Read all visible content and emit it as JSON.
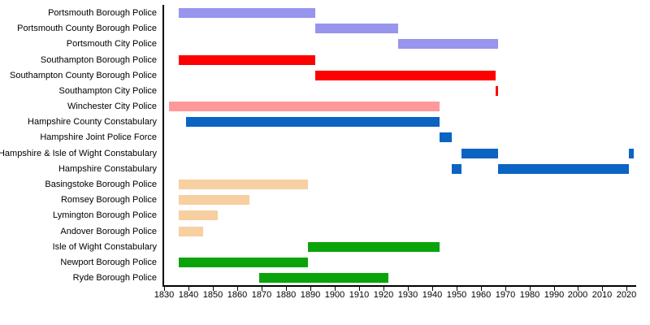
{
  "chart_data": {
    "type": "bar",
    "subtype": "gantt-timeline",
    "title": "",
    "xlabel": "",
    "ylabel": "",
    "grid": false,
    "legend": "none",
    "x_axis": {
      "min": 1830,
      "max": 2023.5,
      "tick_interval": 10,
      "ticks": [
        1830,
        1840,
        1850,
        1860,
        1870,
        1880,
        1890,
        1900,
        1910,
        1920,
        1930,
        1940,
        1950,
        1960,
        1970,
        1980,
        1990,
        2000,
        2010,
        2020
      ]
    },
    "colors": {
      "portsmouth": "#9795ee",
      "southampton": "#ff0000",
      "winchester": "#ff9898",
      "hampshire": "#0b63c4",
      "small_borough": "#f8cfa0",
      "isle_of_wight": "#0aa30a"
    },
    "rows": [
      {
        "label": "Portsmouth Borough Police",
        "color": "#9795ee",
        "segments": [
          {
            "start": 1836,
            "end": 1892
          }
        ]
      },
      {
        "label": "Portsmouth County Borough Police",
        "color": "#9795ee",
        "segments": [
          {
            "start": 1892,
            "end": 1926
          }
        ]
      },
      {
        "label": "Portsmouth City Police",
        "color": "#9795ee",
        "segments": [
          {
            "start": 1926,
            "end": 1967
          }
        ]
      },
      {
        "label": "Southampton Borough Police",
        "color": "#ff0000",
        "segments": [
          {
            "start": 1836,
            "end": 1892
          }
        ]
      },
      {
        "label": "Southampton County Borough Police",
        "color": "#ff0000",
        "segments": [
          {
            "start": 1892,
            "end": 1966
          }
        ]
      },
      {
        "label": "Southampton City Police",
        "color": "#ff0000",
        "segments": [
          {
            "start": 1966,
            "end": 1967
          }
        ]
      },
      {
        "label": "Winchester City Police",
        "color": "#ff9898",
        "segments": [
          {
            "start": 1832,
            "end": 1943
          }
        ]
      },
      {
        "label": "Hampshire County Constabulary",
        "color": "#0b63c4",
        "segments": [
          {
            "start": 1839,
            "end": 1943
          }
        ]
      },
      {
        "label": "Hampshire Joint Police Force",
        "color": "#0b63c4",
        "segments": [
          {
            "start": 1943,
            "end": 1948
          }
        ]
      },
      {
        "label": "Hampshire & Isle of Wight Constabulary",
        "color": "#0b63c4",
        "segments": [
          {
            "start": 1952,
            "end": 1967
          },
          {
            "start": 2021,
            "end": 2023
          }
        ]
      },
      {
        "label": "Hampshire Constabulary",
        "color": "#0b63c4",
        "segments": [
          {
            "start": 1948,
            "end": 1952
          },
          {
            "start": 1967,
            "end": 2021
          }
        ]
      },
      {
        "label": "Basingstoke Borough Police",
        "color": "#f8cfa0",
        "segments": [
          {
            "start": 1836,
            "end": 1889
          }
        ]
      },
      {
        "label": "Romsey Borough Police",
        "color": "#f8cfa0",
        "segments": [
          {
            "start": 1836,
            "end": 1865
          }
        ]
      },
      {
        "label": "Lymington Borough Police",
        "color": "#f8cfa0",
        "segments": [
          {
            "start": 1836,
            "end": 1852
          }
        ]
      },
      {
        "label": "Andover Borough Police",
        "color": "#f8cfa0",
        "segments": [
          {
            "start": 1836,
            "end": 1846
          }
        ]
      },
      {
        "label": "Isle of Wight Constabulary",
        "color": "#0aa30a",
        "segments": [
          {
            "start": 1889,
            "end": 1943
          }
        ]
      },
      {
        "label": "Newport Borough Police",
        "color": "#0aa30a",
        "segments": [
          {
            "start": 1836,
            "end": 1889
          }
        ]
      },
      {
        "label": "Ryde Borough Police",
        "color": "#0aa30a",
        "segments": [
          {
            "start": 1869,
            "end": 1922
          }
        ]
      }
    ]
  }
}
